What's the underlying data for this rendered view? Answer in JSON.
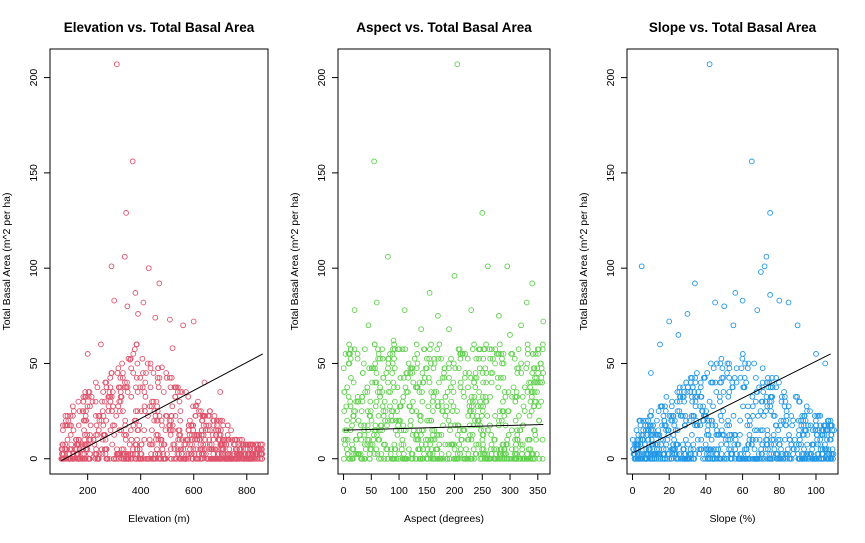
{
  "chart_data": [
    {
      "type": "scatter",
      "title": "Elevation vs. Total Basal Area",
      "xlabel": "Elevation (m)",
      "ylabel": "Total Basal Area (m^2 per ha)",
      "xticks": [
        200,
        400,
        600,
        800
      ],
      "yticks": [
        0,
        50,
        100,
        150,
        200
      ],
      "xlim": [
        58,
        880
      ],
      "ylim": [
        -8,
        215
      ],
      "point_color": "#DF536B",
      "grid": false,
      "trend_line": {
        "x": [
          100,
          860
        ],
        "y": [
          -1,
          55
        ]
      },
      "x": [
        310,
        370,
        345,
        340,
        290,
        430,
        470,
        380,
        300,
        410,
        350,
        390,
        455,
        510,
        560,
        600,
        250,
        200,
        520,
        640,
        700,
        330,
        360,
        420,
        480,
        270,
        230,
        540,
        610,
        660
      ],
      "y": [
        207,
        156,
        129,
        106,
        101,
        100,
        92,
        87,
        83,
        82,
        80,
        76,
        74,
        73,
        70,
        72,
        60,
        55,
        58,
        40,
        35,
        50,
        52,
        45,
        48,
        40,
        30,
        35,
        28,
        25
      ],
      "dense_x_range": [
        100,
        860
      ],
      "dense_y_range": [
        0,
        60
      ],
      "dense_count": 800
    },
    {
      "type": "scatter",
      "title": "Aspect vs. Total Basal Area",
      "xlabel": "Aspect (degrees)",
      "ylabel": "Total Basal Area (m^2 per ha)",
      "xticks": [
        0,
        50,
        100,
        150,
        200,
        250,
        300,
        350
      ],
      "yticks": [
        0,
        50,
        100,
        150,
        200
      ],
      "xlim": [
        -10,
        372
      ],
      "ylim": [
        -8,
        215
      ],
      "point_color": "#61D04F",
      "grid": false,
      "trend_line": {
        "x": [
          0,
          360
        ],
        "y": [
          15,
          18
        ]
      },
      "x": [
        205,
        55,
        250,
        80,
        260,
        295,
        200,
        340,
        155,
        330,
        60,
        20,
        110,
        170,
        230,
        280,
        320,
        45,
        140,
        190,
        10,
        90,
        360,
        300,
        215
      ],
      "y": [
        207,
        156,
        129,
        106,
        101,
        101,
        96,
        92,
        87,
        82,
        82,
        78,
        78,
        75,
        78,
        75,
        70,
        70,
        68,
        68,
        60,
        62,
        72,
        65,
        55
      ],
      "dense_x_range": [
        0,
        360
      ],
      "dense_y_range": [
        0,
        60
      ],
      "dense_count": 800
    },
    {
      "type": "scatter",
      "title": "Slope vs. Total Basal Area",
      "xlabel": "Slope (%)",
      "ylabel": "Total Basal Area (m^2 per ha)",
      "xticks": [
        0,
        20,
        40,
        60,
        80,
        100
      ],
      "yticks": [
        0,
        50,
        100,
        150,
        200
      ],
      "xlim": [
        -3,
        112
      ],
      "ylim": [
        -8,
        215
      ],
      "point_color": "#2297E6",
      "grid": false,
      "trend_line": {
        "x": [
          0,
          108
        ],
        "y": [
          3,
          55
        ]
      },
      "x": [
        42,
        65,
        75,
        73,
        72,
        5,
        70,
        34,
        56,
        75,
        60,
        80,
        85,
        45,
        50,
        68,
        30,
        20,
        90,
        100,
        105,
        15,
        10,
        25,
        55
      ],
      "y": [
        207,
        156,
        129,
        106,
        101,
        101,
        98,
        92,
        87,
        86,
        83,
        83,
        82,
        82,
        80,
        78,
        76,
        72,
        70,
        55,
        50,
        60,
        45,
        65,
        70
      ],
      "dense_x_range": [
        0,
        110
      ],
      "dense_y_range": [
        0,
        60
      ],
      "dense_count": 800
    }
  ]
}
